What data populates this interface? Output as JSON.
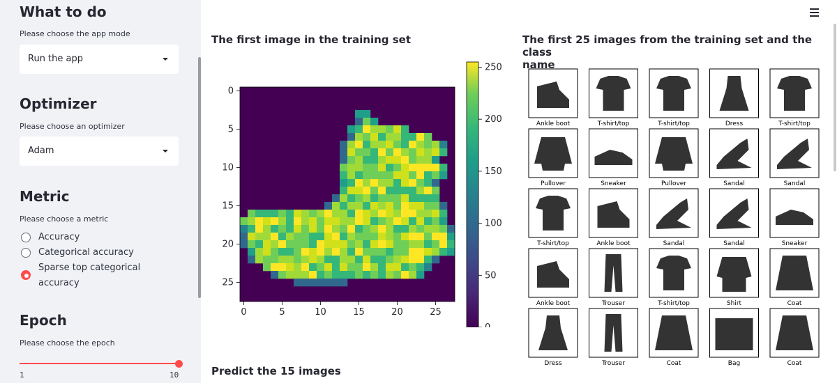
{
  "sidebar": {
    "app_mode": {
      "heading": "What to do",
      "help": "Please choose the app mode",
      "value": "Run the app"
    },
    "optimizer": {
      "heading": "Optimizer",
      "help": "Please choose an optimizer",
      "value": "Adam"
    },
    "metric": {
      "heading": "Metric",
      "help": "Please choose a metric",
      "options": [
        {
          "label": "Accuracy",
          "selected": false
        },
        {
          "label": "Categorical accuracy",
          "selected": false
        },
        {
          "label": "Sparse top categorical",
          "label2": "accuracy",
          "selected": true
        }
      ]
    },
    "epoch": {
      "heading": "Epoch",
      "help": "Please choose the epoch",
      "min": "1",
      "max": "10",
      "value": 10
    }
  },
  "main": {
    "first_image_title": "The first image in the training set",
    "grid_title_line1": "The first 25 images from the training set and the class",
    "grid_title_line2": "name",
    "predict_title": "Predict the 15 images"
  },
  "heatmap": {
    "x_ticks": [
      "0",
      "5",
      "10",
      "15",
      "20",
      "25"
    ],
    "y_ticks": [
      "0",
      "5",
      "10",
      "15",
      "20",
      "25"
    ],
    "colorbar_ticks": [
      "0",
      "50",
      "100",
      "150",
      "200",
      "250"
    ]
  },
  "grid_labels": [
    "Ankle boot",
    "T-shirt/top",
    "T-shirt/top",
    "Dress",
    "T-shirt/top",
    "Pullover",
    "Sneaker",
    "Pullover",
    "Sandal",
    "Sandal",
    "T-shirt/top",
    "Ankle boot",
    "Sandal",
    "Sandal",
    "Sneaker",
    "Ankle boot",
    "Trouser",
    "T-shirt/top",
    "Shirt",
    "Coat",
    "Dress",
    "Trouser",
    "Coat",
    "Bag",
    "Coat"
  ],
  "colors": {
    "accent": "#ff4b4b",
    "sidebar_bg": "#f0f2f6",
    "heatmap_bg": "#440154"
  }
}
